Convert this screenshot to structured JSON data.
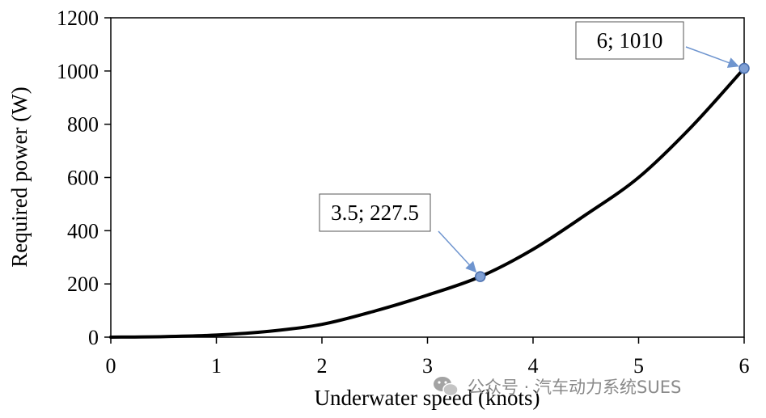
{
  "chart_data": {
    "type": "line",
    "title": "",
    "xlabel": "Underwater speed (knots)",
    "ylabel": "Required power (W)",
    "xlim": [
      0,
      6
    ],
    "ylim": [
      0,
      1200
    ],
    "xticks": [
      0,
      1,
      2,
      3,
      4,
      5,
      6
    ],
    "yticks": [
      0,
      200,
      400,
      600,
      800,
      1000,
      1200
    ],
    "grid": false,
    "series": [
      {
        "name": "Required power",
        "color": "#000000",
        "x": [
          0,
          0.5,
          1,
          1.5,
          2,
          2.5,
          3,
          3.5,
          4,
          4.5,
          5,
          5.5,
          6
        ],
        "y": [
          0,
          2,
          8,
          22,
          48,
          98,
          158,
          227.5,
          330,
          460,
          600,
          790,
          1010
        ]
      }
    ],
    "markers": [
      {
        "x": 3.5,
        "y": 227.5,
        "color": "#7f9fd4"
      },
      {
        "x": 6,
        "y": 1010,
        "color": "#7f9fd4"
      }
    ],
    "annotations": [
      {
        "text": "3.5; 227.5",
        "x": 3.5,
        "y": 227.5
      },
      {
        "text": "6; 1010",
        "x": 6,
        "y": 1010
      }
    ]
  },
  "watermark": {
    "text": "公众号 · 汽车动力系统SUES",
    "icon": "wechat-icon"
  },
  "colors": {
    "line": "#000000",
    "marker_fill": "#7f9fd4",
    "marker_stroke": "#4a6fae",
    "arrow": "#6f95cf"
  }
}
